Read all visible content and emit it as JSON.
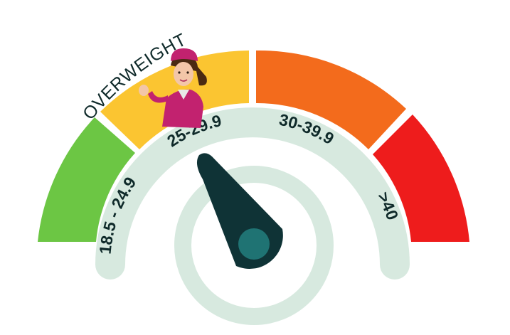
{
  "gauge": {
    "title": "OVERWEIGHT",
    "segments": [
      {
        "id": "normal",
        "label": "18.5 - 24.9",
        "color": "#6cc644"
      },
      {
        "id": "overweight",
        "label": "25-29.9",
        "color": "#fbc531"
      },
      {
        "id": "obese",
        "label": "30-39.9",
        "color": "#f36b1c"
      },
      {
        "id": "severe",
        "label": ">40",
        "color": "#ee1c1c"
      }
    ],
    "active_segment": "overweight",
    "track_color": "#d7e9df",
    "label_color": "#0f2a2a",
    "needle_color": "#0f3336",
    "hub_color": "#1f7373"
  }
}
